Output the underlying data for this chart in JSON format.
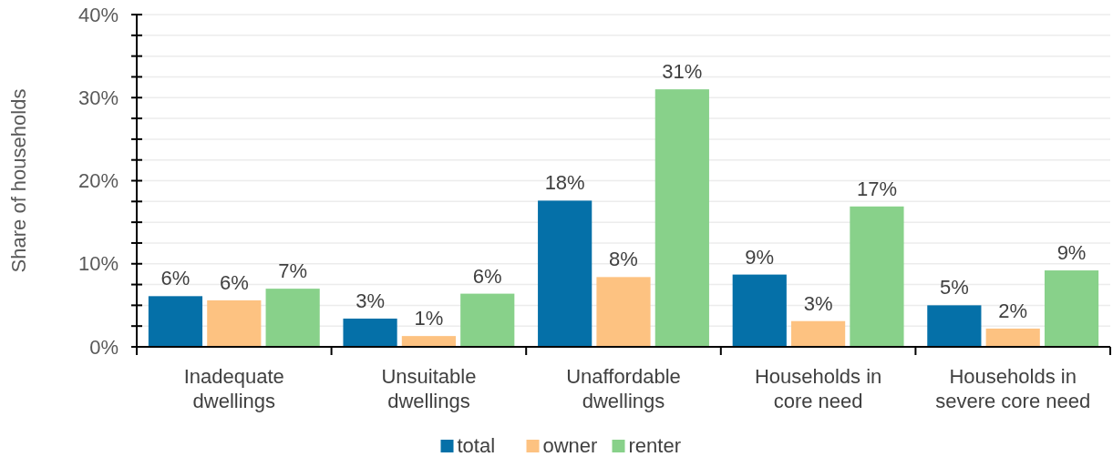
{
  "chart_data": {
    "type": "bar",
    "ylabel": "Share of households",
    "categories": [
      "Inadequate dwellings",
      "Unsuitable dwellings",
      "Unaffordable dwellings",
      "Households in core need",
      "Households in severe core need"
    ],
    "series": [
      {
        "name": "total",
        "color": "#0570a8",
        "values": [
          6.1,
          3.4,
          17.6,
          8.7,
          5.0
        ],
        "value_labels": [
          "6%",
          "3%",
          "18%",
          "9%",
          "5%"
        ]
      },
      {
        "name": "owner",
        "color": "#fdc281",
        "values": [
          5.6,
          1.3,
          8.4,
          3.1,
          2.2
        ],
        "value_labels": [
          "6%",
          "1%",
          "8%",
          "3%",
          "2%"
        ]
      },
      {
        "name": "renter",
        "color": "#88d18a",
        "values": [
          7.0,
          6.4,
          31.0,
          16.9,
          9.2
        ],
        "value_labels": [
          "7%",
          "6%",
          "31%",
          "17%",
          "9%"
        ]
      }
    ],
    "ylim": [
      0,
      40
    ],
    "yticks": [
      {
        "value": 0,
        "label": "0%"
      },
      {
        "value": 2.5,
        "label": null
      },
      {
        "value": 5,
        "label": null
      },
      {
        "value": 7.5,
        "label": null
      },
      {
        "value": 10,
        "label": "10%"
      },
      {
        "value": 12.5,
        "label": null
      },
      {
        "value": 15,
        "label": null
      },
      {
        "value": 17.5,
        "label": null
      },
      {
        "value": 20,
        "label": "20%"
      },
      {
        "value": 22.5,
        "label": null
      },
      {
        "value": 25,
        "label": null
      },
      {
        "value": 27.5,
        "label": null
      },
      {
        "value": 30,
        "label": "30%"
      },
      {
        "value": 32.5,
        "label": null
      },
      {
        "value": 35,
        "label": null
      },
      {
        "value": 37.5,
        "label": null
      },
      {
        "value": 40,
        "label": "40%"
      }
    ],
    "grid": true,
    "legend": "bottom"
  }
}
